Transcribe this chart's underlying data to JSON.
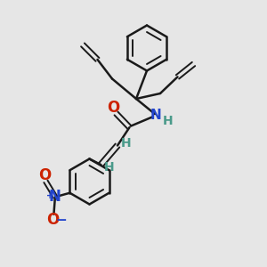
{
  "bg_color": "#e6e6e6",
  "bond_color": "#1a1a1a",
  "h_color": "#4a9a8a",
  "o_color": "#cc2200",
  "n_color": "#2244cc",
  "lw": 1.8,
  "lw_t": 1.4,
  "figsize": [
    3.0,
    3.0
  ],
  "dpi": 100,
  "xlim": [
    0,
    10
  ],
  "ylim": [
    0,
    10
  ]
}
